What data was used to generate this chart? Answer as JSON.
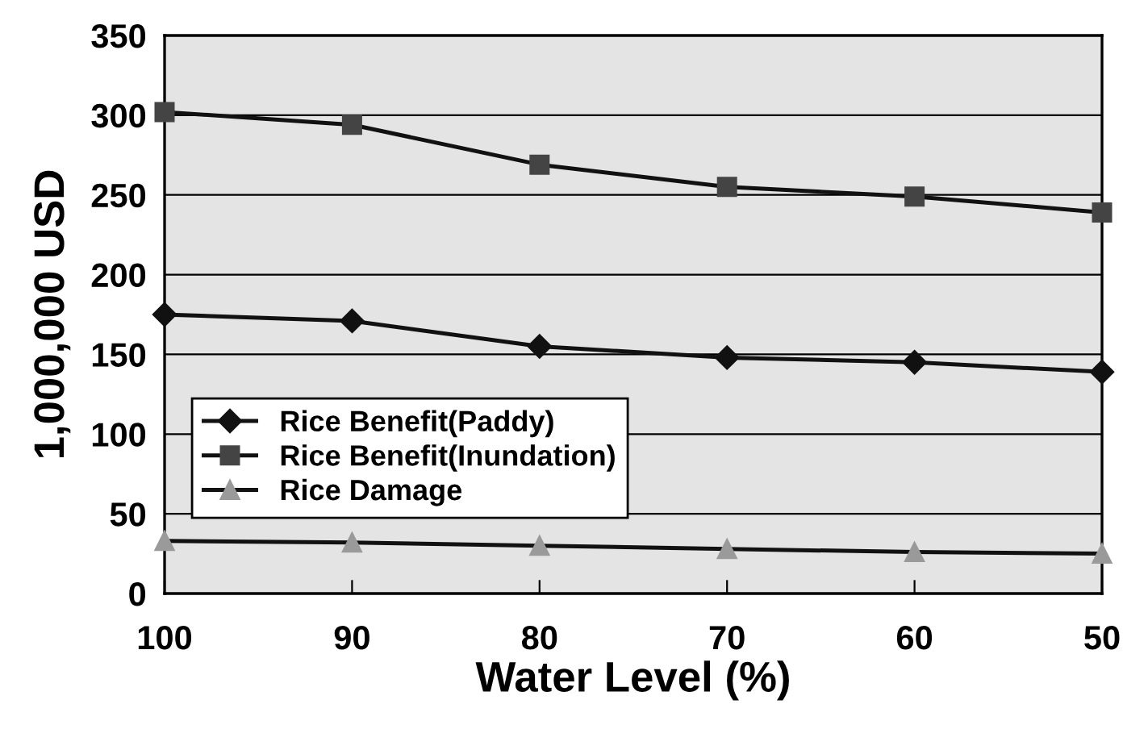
{
  "chart_data": {
    "type": "line",
    "xlabel": "Water Level (%)",
    "ylabel": "1,000,000 USD",
    "x": [
      100,
      90,
      80,
      70,
      60,
      50
    ],
    "xlim": [
      100,
      50
    ],
    "xticks": [
      100,
      90,
      80,
      70,
      60,
      50
    ],
    "ylim": [
      0,
      350
    ],
    "yticks": [
      0,
      50,
      100,
      150,
      200,
      250,
      300,
      350
    ],
    "grid": "y",
    "legend": "bottom left",
    "line_style": "solid",
    "series": [
      {
        "name": "Rice Benefit(Paddy)",
        "color": "#111111",
        "marker": "diamond",
        "values": [
          175,
          171,
          155,
          148,
          145,
          139
        ]
      },
      {
        "name": "Rice Benefit(Inundation)",
        "color": "#444444",
        "marker": "square",
        "values": [
          302,
          294,
          269,
          255,
          249,
          239
        ]
      },
      {
        "name": "Rice Damage",
        "color": "#9a9a9a",
        "marker": "triangle",
        "values": [
          33,
          32,
          30,
          28,
          26,
          25
        ]
      }
    ]
  }
}
